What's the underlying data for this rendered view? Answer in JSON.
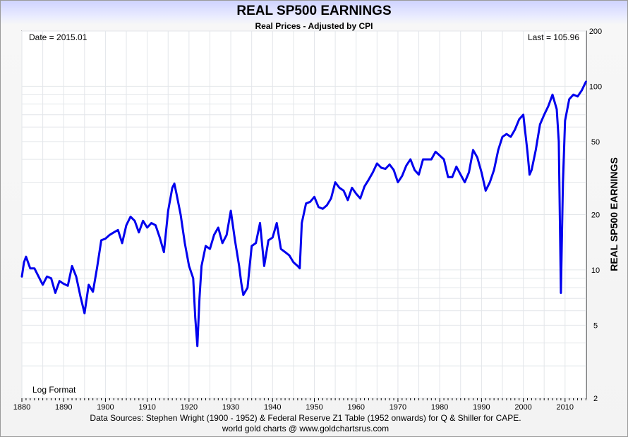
{
  "chart_data": {
    "type": "line",
    "title": "REAL SP500 EARNINGS",
    "subtitle": "Real Prices - Adjusted by CPI",
    "ylabel": "REAL SP500 EARNINGS",
    "yscale": "log",
    "ylim": [
      2,
      200
    ],
    "xlim": [
      1880,
      2015.1
    ],
    "xticks": [
      "1880",
      "1890",
      "1900",
      "1910",
      "1920",
      "1930",
      "1940",
      "1950",
      "1960",
      "1970",
      "1980",
      "1990",
      "2000",
      "2010"
    ],
    "yticks": [
      "2",
      "5",
      "10",
      "20",
      "50",
      "100",
      "200"
    ],
    "grid": true,
    "annotations": {
      "date": "Date = 2015.01",
      "last": "Last = 105.96",
      "format": "Log Format"
    },
    "series": [
      {
        "color": "#0000ee",
        "x": [
          1880,
          1880.5,
          1881,
          1882,
          1883,
          1884,
          1885,
          1886,
          1887,
          1888,
          1889,
          1890,
          1891,
          1892,
          1893,
          1894,
          1895,
          1896,
          1897,
          1898,
          1899,
          1900,
          1901,
          1902,
          1903,
          1904,
          1905,
          1906,
          1907,
          1908,
          1909,
          1910,
          1911,
          1912,
          1913,
          1914,
          1915,
          1916,
          1916.5,
          1917,
          1918,
          1919,
          1920,
          1921,
          1921.5,
          1922,
          1922.5,
          1923,
          1924,
          1925,
          1926,
          1927,
          1928,
          1929,
          1930,
          1931,
          1932,
          1932.5,
          1933,
          1934,
          1935,
          1936,
          1937,
          1938,
          1939,
          1940,
          1941,
          1942,
          1943,
          1944,
          1945,
          1946,
          1946.5,
          1947,
          1948,
          1949,
          1950,
          1951,
          1952,
          1953,
          1954,
          1955,
          1956,
          1957,
          1958,
          1959,
          1960,
          1961,
          1962,
          1963,
          1964,
          1965,
          1966,
          1967,
          1968,
          1969,
          1970,
          1971,
          1972,
          1973,
          1974,
          1975,
          1976,
          1977,
          1978,
          1979,
          1980,
          1981,
          1982,
          1983,
          1984,
          1985,
          1986,
          1987,
          1988,
          1989,
          1990,
          1991,
          1992,
          1993,
          1994,
          1995,
          1996,
          1997,
          1998,
          1999,
          2000,
          2001,
          2001.5,
          2002,
          2003,
          2004,
          2005,
          2006,
          2007,
          2008,
          2008.5,
          2009,
          2009.5,
          2010,
          2011,
          2012,
          2013,
          2014,
          2015
        ],
        "y": [
          9.2,
          11,
          11.8,
          10.2,
          10.2,
          9.2,
          8.3,
          9.2,
          9.0,
          7.5,
          8.7,
          8.4,
          8.2,
          10.5,
          9.2,
          7.2,
          5.8,
          8.3,
          7.6,
          10.3,
          14.5,
          14.8,
          15.5,
          16.0,
          16.5,
          14.0,
          17.5,
          19.5,
          18.5,
          16.0,
          18.5,
          17.0,
          18.0,
          17.5,
          15.0,
          12.5,
          21.0,
          28.0,
          29.5,
          26.0,
          20.0,
          14.0,
          10.5,
          9.0,
          5.5,
          3.85,
          7.0,
          10.5,
          13.5,
          13.0,
          15.5,
          17.0,
          14.0,
          15.5,
          21.0,
          14.5,
          10.5,
          8.5,
          7.3,
          8.0,
          13.5,
          14.0,
          18.0,
          10.5,
          14.5,
          15.0,
          18.0,
          13.0,
          12.5,
          12.0,
          11.0,
          10.5,
          10.2,
          18.0,
          23.0,
          23.5,
          25.0,
          22.0,
          21.5,
          22.5,
          24.5,
          30.0,
          28.0,
          27.0,
          24.0,
          28.0,
          26.0,
          24.5,
          28.5,
          31.0,
          34.0,
          38.0,
          36.0,
          35.5,
          37.5,
          35.0,
          30.0,
          32.5,
          37.0,
          40.0,
          35.0,
          33.0,
          40.0,
          40.0,
          40.0,
          44.0,
          42.0,
          40.0,
          32.0,
          32.0,
          36.5,
          33.0,
          30.0,
          34.0,
          45.0,
          41.0,
          34.0,
          27.0,
          30.0,
          35.0,
          45.0,
          53.0,
          55.0,
          53.0,
          58.0,
          66.0,
          70.0,
          44.0,
          33.0,
          35.0,
          45.0,
          62.0,
          70.0,
          78.0,
          90.0,
          75.0,
          50.0,
          7.5,
          30.0,
          65.0,
          85.0,
          90.0,
          88.0,
          95.0,
          105.96
        ]
      }
    ]
  },
  "footer": {
    "sources": "Data Sources: Stephen Wright (1900 - 1952) & Federal Reserve Z1 Table (1952 onwards) for Q & Shiller for CAPE.",
    "credit": "world gold charts @ www.goldchartsrus.com"
  }
}
